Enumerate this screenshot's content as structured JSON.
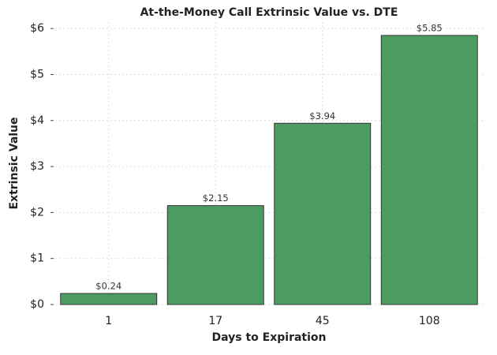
{
  "chart_data": {
    "type": "bar",
    "title": "At-the-Money Call Extrinsic Value vs. DTE",
    "x_label": "Days to Expiration",
    "y_label": "Extrinsic Value",
    "categories": [
      "1",
      "17",
      "45",
      "108"
    ],
    "values": [
      0.24,
      2.15,
      3.94,
      5.85
    ],
    "value_labels": [
      "$0.24",
      "$2.15",
      "$3.94",
      "$5.85"
    ],
    "color": "#4c9c62",
    "ylim": [
      0,
      6.14
    ],
    "yticks": [
      {
        "value": 0,
        "label": "$0"
      },
      {
        "value": 1,
        "label": "$1"
      },
      {
        "value": 2,
        "label": "$2"
      },
      {
        "value": 3,
        "label": "$3"
      },
      {
        "value": 4,
        "label": "$4"
      },
      {
        "value": 5,
        "label": "$5"
      },
      {
        "value": 6,
        "label": "$6"
      }
    ],
    "grid": true
  }
}
